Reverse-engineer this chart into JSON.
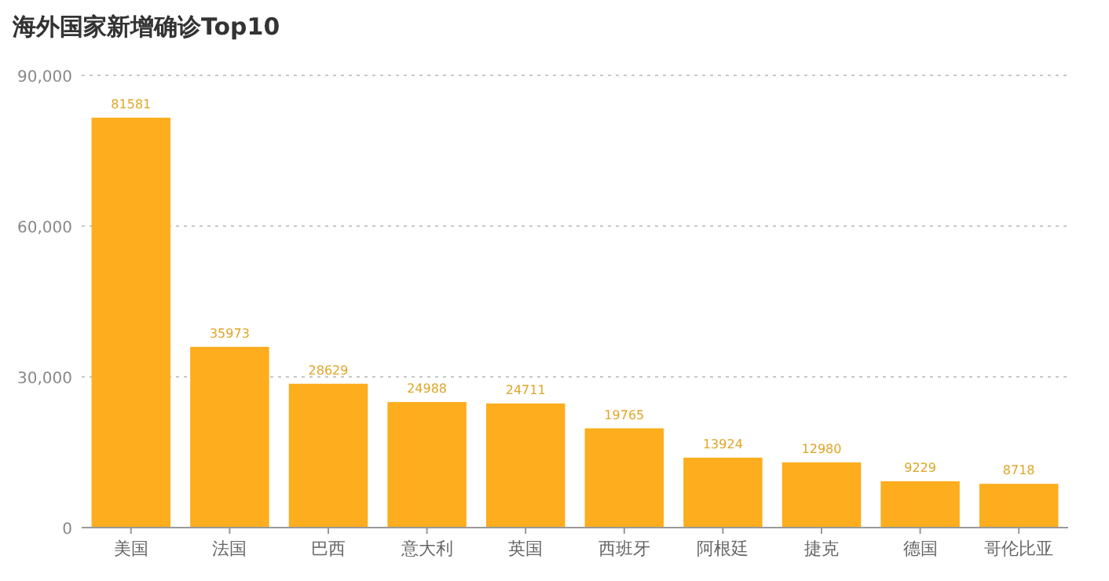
{
  "chart_data": {
    "type": "bar",
    "title": "海外国家新增确诊Top10",
    "categories": [
      "美国",
      "法国",
      "巴西",
      "意大利",
      "英国",
      "西班牙",
      "阿根廷",
      "捷克",
      "德国",
      "哥伦比亚"
    ],
    "values": [
      81581,
      35973,
      28629,
      24988,
      24711,
      19765,
      13924,
      12980,
      9229,
      8718
    ],
    "color": "#fdad1d",
    "ylim": [
      0,
      90000
    ],
    "yticks": [
      0,
      {
        "value": 30000,
        "label": "30,000"
      },
      {
        "value": 60000,
        "label": "60,000"
      },
      {
        "value": 90000,
        "label": "90,000"
      }
    ],
    "grid": "y",
    "data_labels": true
  }
}
